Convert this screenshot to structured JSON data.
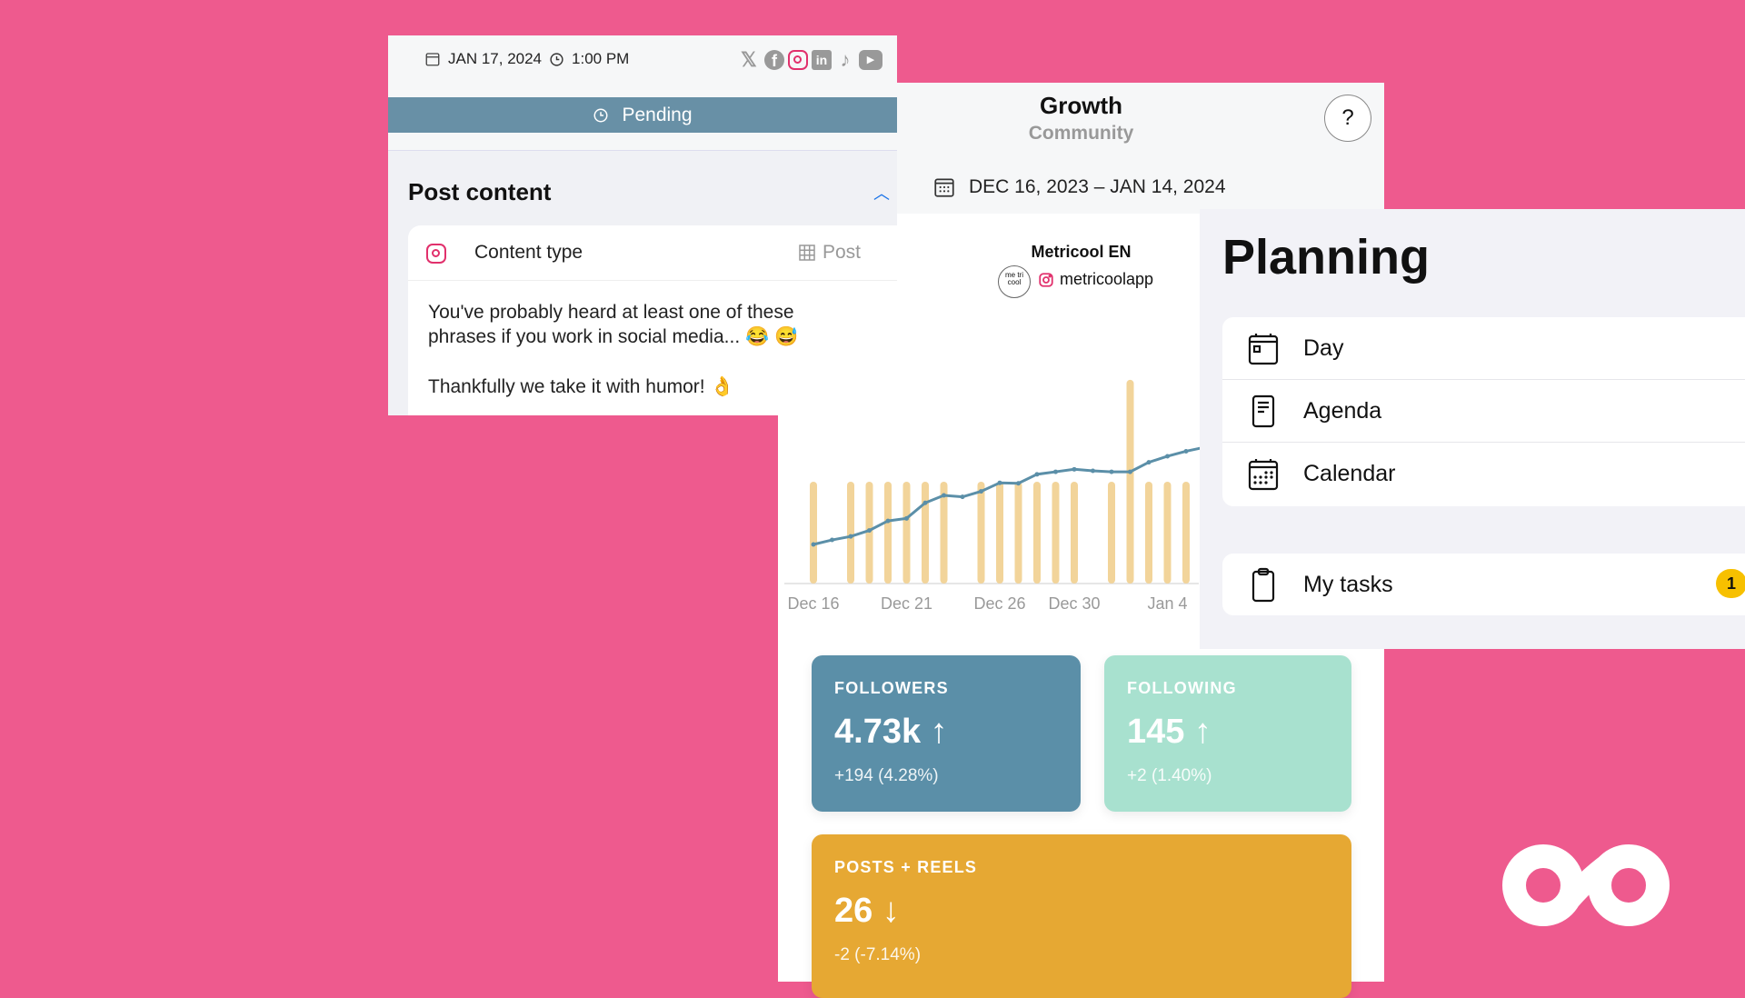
{
  "post": {
    "date": "JAN 17, 2024",
    "time": "1:00 PM",
    "networks": [
      "x-icon",
      "facebook-icon",
      "instagram-icon",
      "linkedin-icon",
      "tiktok-icon",
      "youtube-icon"
    ],
    "active_network": "instagram",
    "status": "Pending",
    "section_title": "Post content",
    "content_type_label": "Content type",
    "content_type_value": "Post",
    "body": [
      "You've probably heard at least one of these",
      "phrases if you work in social media... 😂 😅",
      "Thankfully we take it with humor! 👌"
    ]
  },
  "growth": {
    "title": "Growth",
    "subtitle": "Community",
    "help": "?",
    "date_range": "DEC 16, 2023 – JAN 14, 2024",
    "account_name": "Metricool EN",
    "avatar_text": "me tri cool",
    "account_handle": "metricoolapp"
  },
  "chart_data": {
    "type": "bar+line",
    "x": [
      "Dec 16",
      "Dec 17",
      "Dec 18",
      "Dec 19",
      "Dec 20",
      "Dec 21",
      "Dec 22",
      "Dec 23",
      "Dec 24",
      "Dec 25",
      "Dec 26",
      "Dec 27",
      "Dec 28",
      "Dec 29",
      "Dec 30",
      "Dec 31",
      "Jan 1",
      "Jan 2",
      "Jan 3",
      "Jan 4",
      "Jan 5",
      "Jan 6"
    ],
    "tick_labels": [
      "Dec 16",
      "Dec 21",
      "Dec 26",
      "Dec 30",
      "Jan 4"
    ],
    "series": [
      {
        "kind": "bar",
        "color": "#f2d49a",
        "values": [
          1,
          0,
          1,
          1,
          1,
          1,
          1,
          1,
          0,
          1,
          1,
          1,
          1,
          1,
          1,
          0,
          1,
          2,
          1,
          1,
          1,
          0
        ]
      },
      {
        "kind": "line",
        "color": "#5b8fa8",
        "values": [
          4536,
          4545,
          4552,
          4564,
          4583,
          4588,
          4619,
          4634,
          4631,
          4642,
          4659,
          4658,
          4676,
          4681,
          4686,
          4683,
          4681,
          4681,
          4700,
          4712,
          4722,
          4730
        ]
      }
    ],
    "bar_ylim": [
      0,
      2.16
    ],
    "line_ylim": [
      4458,
      4897
    ],
    "grid": false
  },
  "stats": {
    "followers": {
      "label": "FOLLOWERS",
      "value": "4.73k",
      "trend": "up",
      "change": "+194 (4.28%)",
      "color": "#5b8fa8"
    },
    "following": {
      "label": "FOLLOWING",
      "value": "145",
      "trend": "up",
      "change": "+2 (1.40%)",
      "color": "#a8e1cf"
    },
    "posts": {
      "label": "POSTS + REELS",
      "value": "26",
      "trend": "down",
      "change": "-2 (-7.14%)",
      "color": "#e6a833"
    },
    "arrow_up": "↑",
    "arrow_down": "↓"
  },
  "planning": {
    "title": "Planning",
    "items": [
      {
        "label": "Day"
      },
      {
        "label": "Agenda"
      },
      {
        "label": "Calendar"
      }
    ],
    "tasks_label": "My tasks",
    "tasks_count": "1"
  }
}
